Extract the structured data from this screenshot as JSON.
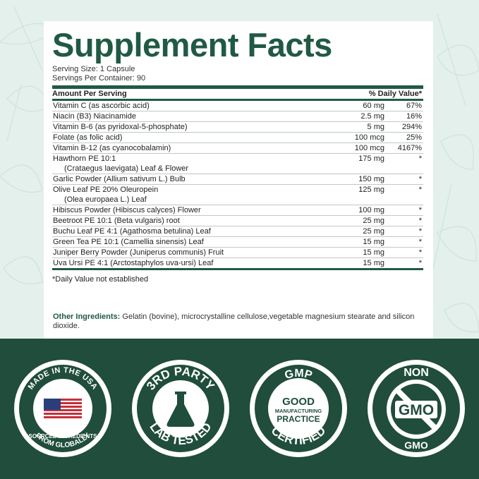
{
  "title": "Supplement Facts",
  "serving_size": "Serving Size: 1 Capsule",
  "servings_per_container": "Servings Per Container: 90",
  "header": {
    "amount": "Amount Per Serving",
    "dv": "% Daily Value*"
  },
  "nutrients": [
    {
      "name": "Vitamin C (as ascorbic acid)",
      "amount": "60 mg",
      "dv": "67%"
    },
    {
      "name": "Niacin (B3) Niacinamide",
      "amount": "2.5 mg",
      "dv": "16%"
    },
    {
      "name": "Vitamin B-6 (as pyridoxal-5-phosphate)",
      "amount": "5 mg",
      "dv": "294%"
    },
    {
      "name": "Folate (as folic acid)",
      "amount": "100 mcg",
      "dv": "25%"
    },
    {
      "name": "Vitamin B-12 (as cyanocobalamin)",
      "amount": "100 mcg",
      "dv": "4167%"
    },
    {
      "name": "Hawthorn PE 10:1",
      "sub": "(Crataegus laevigata) Leaf & Flower",
      "amount": "175 mg",
      "dv": "*"
    },
    {
      "name": "Garlic Powder (Allium sativum L.) Bulb",
      "amount": "150 mg",
      "dv": "*"
    },
    {
      "name": "Olive Leaf PE 20% Oleuropein",
      "sub": "(Olea europaea L.) Leaf",
      "amount": "125 mg",
      "dv": "*"
    },
    {
      "name": "Hibiscus Powder (Hibiscus calyces) Flower",
      "amount": "100 mg",
      "dv": "*"
    },
    {
      "name": "Beetroot PE 10:1 (Beta vulgaris) root",
      "amount": "25 mg",
      "dv": "*"
    },
    {
      "name": "Buchu Leaf PE 4:1 (Agathosma betulina) Leaf",
      "amount": "25 mg",
      "dv": "*"
    },
    {
      "name": "Green Tea PE 10:1 (Camellia sinensis) Leaf",
      "amount": "15 mg",
      "dv": "*"
    },
    {
      "name": "Juniper Berry Powder (Juniperus communis) Fruit",
      "amount": "15 mg",
      "dv": "*"
    },
    {
      "name": "Uva Ursi PE 4:1 (Arctostaphylos uva-ursi) Leaf",
      "amount": "15 mg",
      "dv": "*"
    }
  ],
  "footnote": "*Daily Value not established",
  "other_ingredients": {
    "label": "Other Ingredients:",
    "text": " Gelatin (bovine), microcrystalline cellulose,vegetable magnesium stearate and silicon dioxide."
  },
  "badges": {
    "usa": {
      "top": "MADE IN THE USA",
      "bottom1": "FROM GLOBALLY",
      "bottom2": "SOURCED INGREDIENTS"
    },
    "lab": {
      "top": "3RD PARTY",
      "bottom": "LAB TESTED"
    },
    "gmp": {
      "top": "GMP",
      "line1": "GOOD",
      "line2": "MANUFACTURING",
      "line3": "PRACTICE",
      "bottom": "CERTIFIED"
    },
    "gmo": {
      "top": "NON",
      "mid": "GMO",
      "bottom": "GMO"
    }
  },
  "colors": {
    "brand": "#205a44",
    "dark": "#204d3c",
    "bg": "#e3f0ec"
  }
}
